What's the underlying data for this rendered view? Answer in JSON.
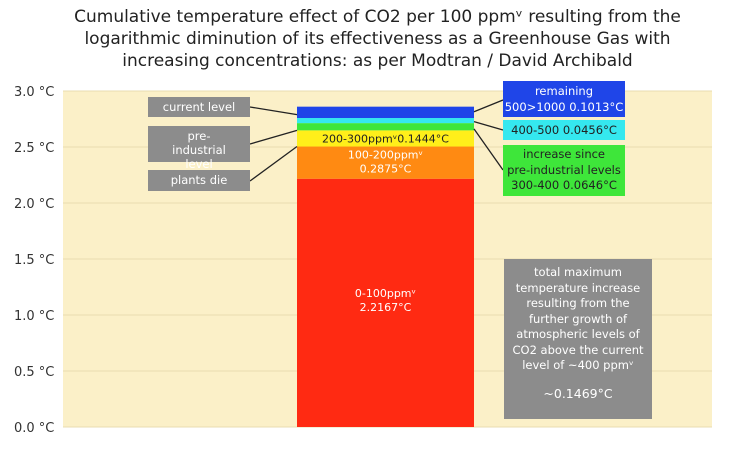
{
  "title_lines": [
    "Cumulative temperature effect of CO2 per 100 ppmᵛ resulting from the",
    "logarithmic diminution of its effectiveness as a Greenhouse Gas with",
    "increasing concentrations:  as per Modtran / David Archibald"
  ],
  "colors": {
    "plot_bg": "#fbf0c8",
    "grid": "#e8dcb0",
    "seg_0_100": "#ff2a12",
    "seg_100_200": "#ff8a12",
    "seg_200_300": "#ffef1a",
    "seg_300_400": "#3ee63a",
    "seg_400_500": "#35e8ef",
    "seg_500_1000": "#1f45e8",
    "grey_box": "#8c8c8c"
  },
  "chart_data": {
    "type": "bar",
    "stacked": true,
    "ylim": [
      0,
      3
    ],
    "yticks": [
      "0.0 °C",
      "0.5 °C",
      "1.0 °C",
      "1.5 °C",
      "2.0 °C",
      "2.5 °C",
      "3.0 °C"
    ],
    "ytick_values": [
      0,
      0.5,
      1.0,
      1.5,
      2.0,
      2.5,
      3.0
    ],
    "segments": [
      {
        "range": "0-100",
        "value": 2.2167,
        "color_key": "seg_0_100",
        "label_lines": [
          "0-100ppmᵛ",
          "2.2167°C"
        ]
      },
      {
        "range": "100-200",
        "value": 0.2875,
        "color_key": "seg_100_200",
        "label_lines": [
          "100-200ppmᵛ",
          "0.2875°C"
        ]
      },
      {
        "range": "200-300",
        "value": 0.1444,
        "color_key": "seg_200_300",
        "label_lines": [
          "200-300ppmᵛ0.1444°C"
        ]
      },
      {
        "range": "300-400",
        "value": 0.0646,
        "color_key": "seg_300_400",
        "label_lines": []
      },
      {
        "range": "400-500",
        "value": 0.0456,
        "color_key": "seg_400_500",
        "label_lines": []
      },
      {
        "range": "500>1000",
        "value": 0.1013,
        "color_key": "seg_500_1000",
        "label_lines": []
      }
    ],
    "annotations": {
      "current_level": "current level",
      "pre_industrial": "pre-industrial level",
      "plants_die": "plants die",
      "remaining": "remaining",
      "remaining_value": "500>1000  0.1013°C",
      "r400": "400-500   0.0456°C",
      "increase_lines": [
        "increase since",
        "pre-industrial levels",
        "300-400  0.0646°C"
      ],
      "total_lines": [
        "total maximum",
        "temperature increase",
        "resulting from the",
        "further growth of",
        "atmospheric levels of",
        "CO2 above the current",
        "level of ~400 ppmᵛ"
      ],
      "total_value": "~0.1469°C"
    }
  }
}
